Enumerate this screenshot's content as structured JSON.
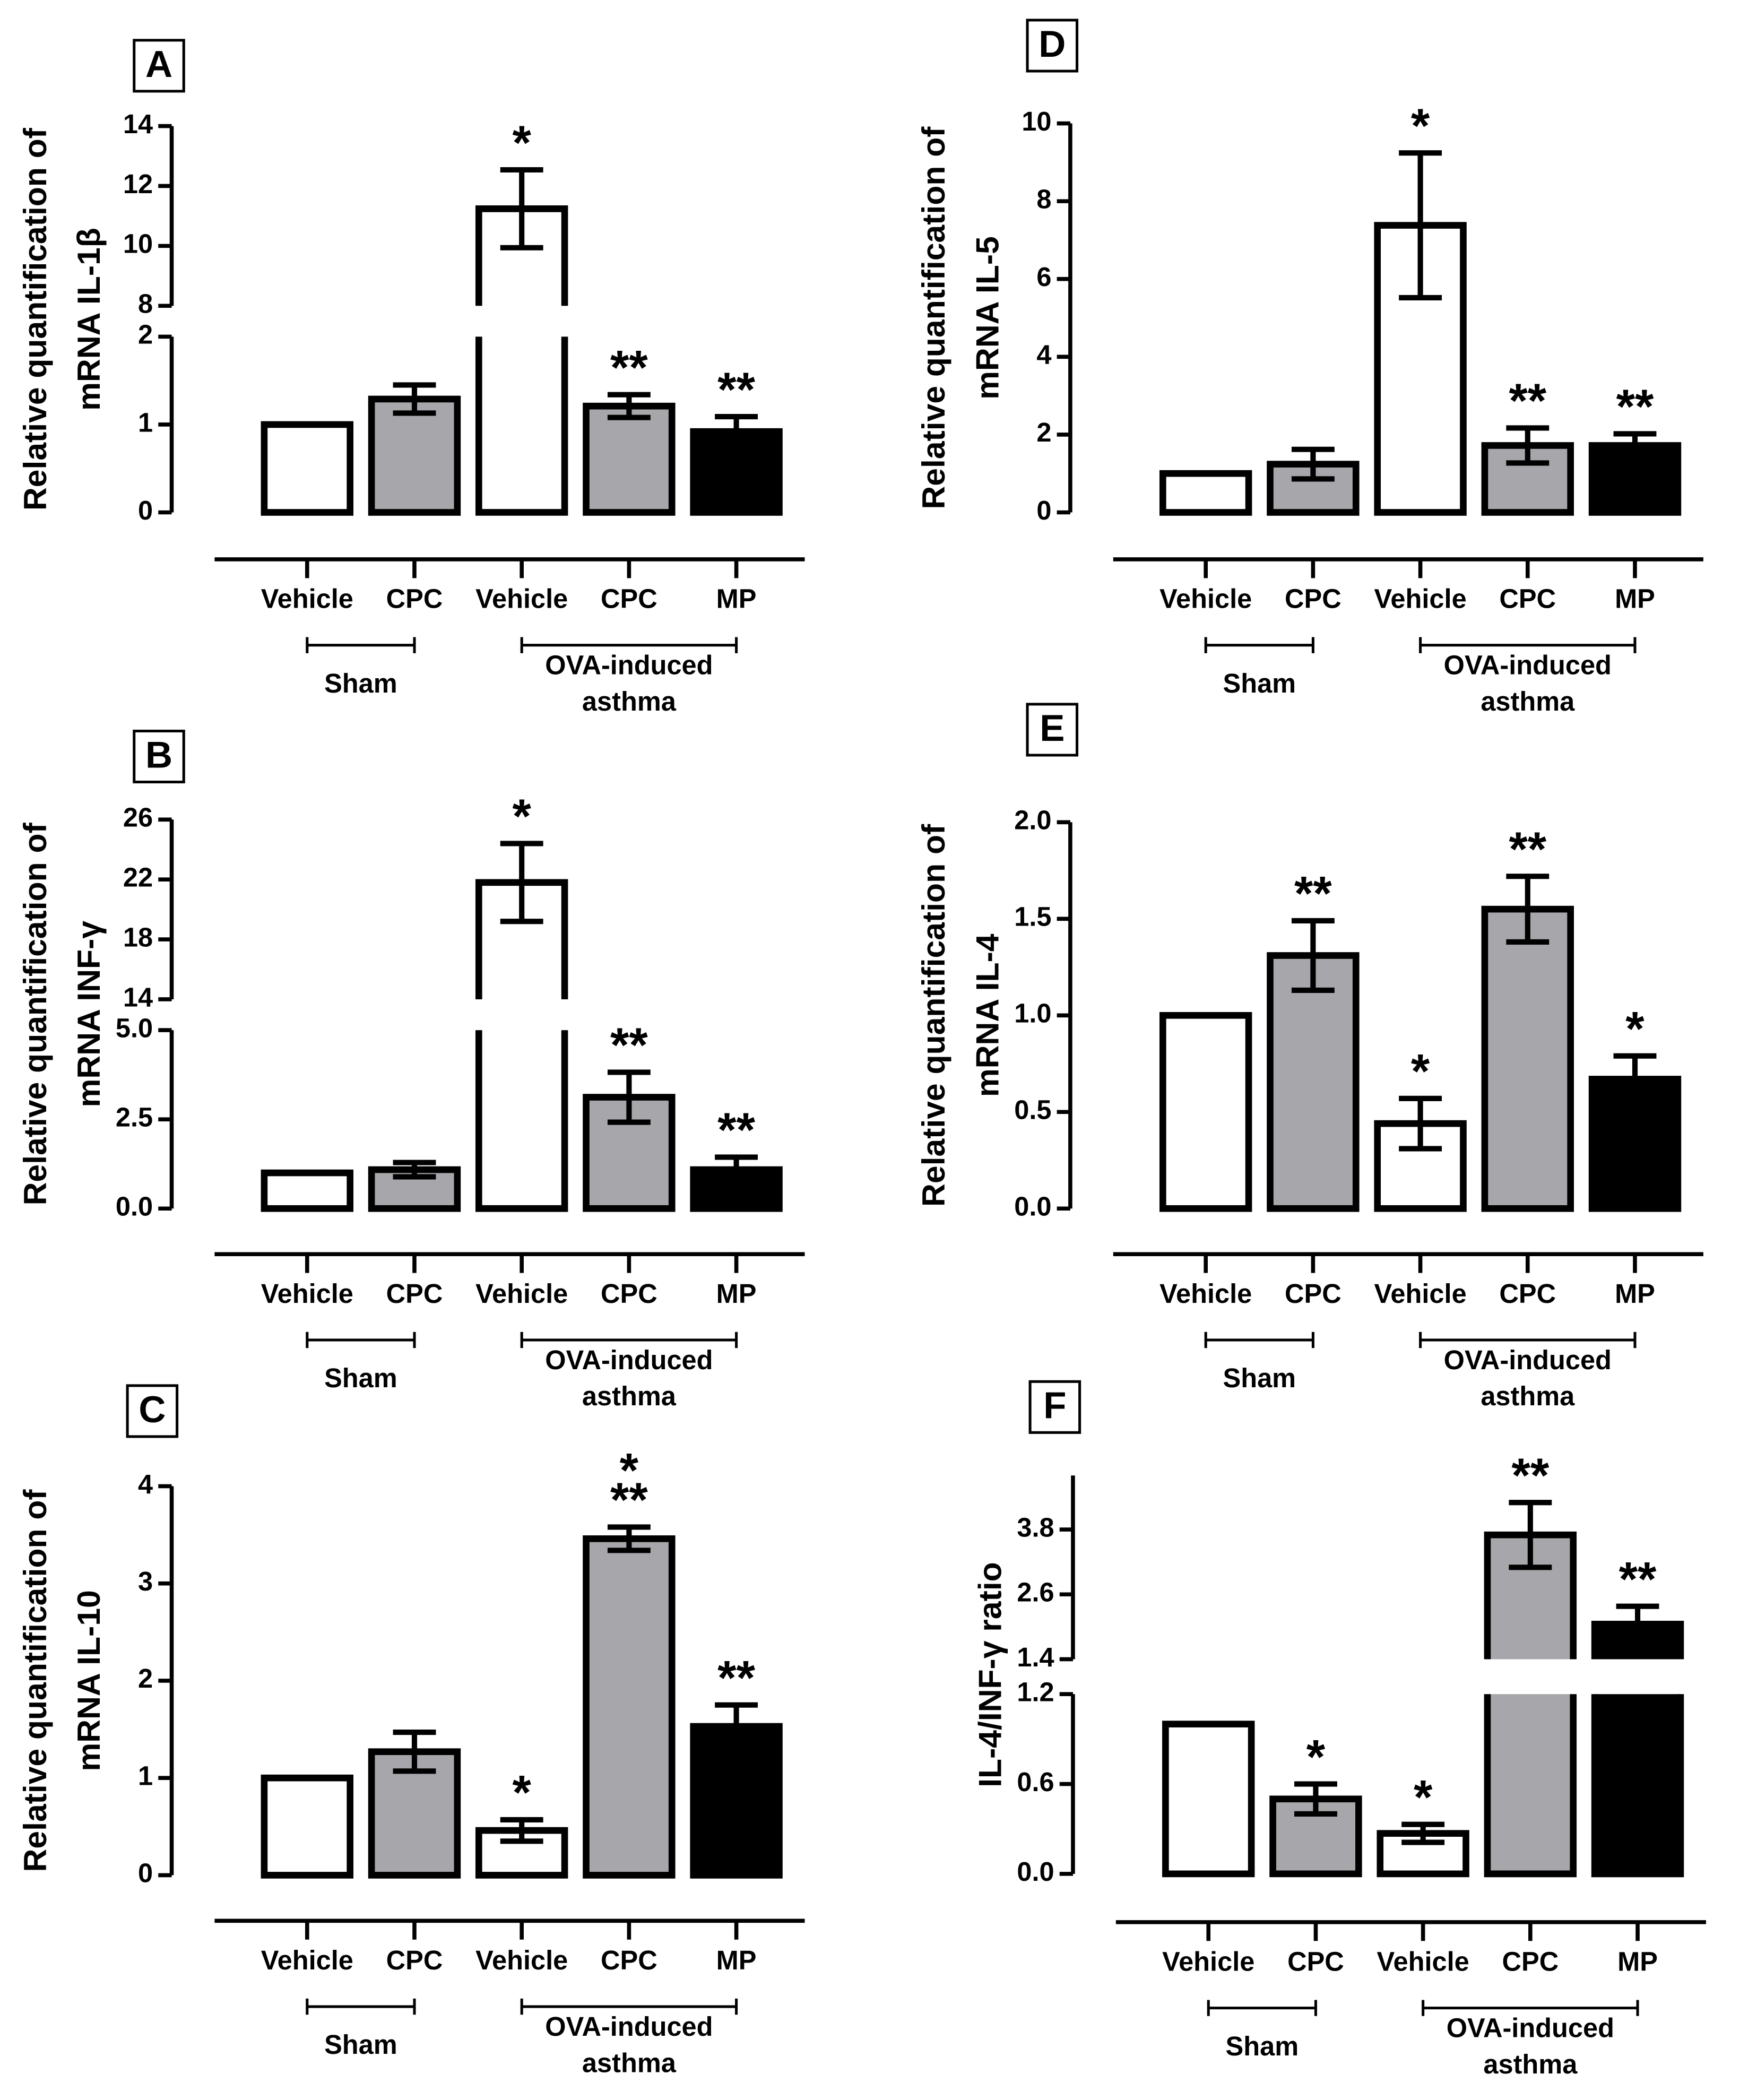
{
  "chart_data": [
    {
      "type": "bar",
      "panel": "A",
      "ylabel": [
        "Relative quantification of",
        "mRNA IL-1β"
      ],
      "categories": [
        "Vehicle",
        "CPC",
        "Vehicle",
        "CPC",
        "MP"
      ],
      "values": [
        1.0,
        1.29,
        11.24,
        1.21,
        0.92
      ],
      "errors": [
        0,
        0.16,
        1.3,
        0.13,
        0.17
      ],
      "colors": [
        "#ffffff",
        "#a7a7ab",
        "#ffffff",
        "#a7a7ab",
        "#000000"
      ],
      "annotations": [
        null,
        null,
        [
          "*"
        ],
        [
          "**"
        ],
        [
          "**"
        ]
      ],
      "groups": [
        {
          "name": [
            "Sham"
          ],
          "size": 2
        },
        {
          "name": [
            "OVA-induced",
            "asthma"
          ],
          "size": 3
        }
      ],
      "ylim": [
        0,
        14
      ],
      "ybreak": [
        2,
        8
      ],
      "yticks": [
        0,
        1,
        2,
        8,
        10,
        12,
        14
      ]
    },
    {
      "type": "bar",
      "panel": "B",
      "ylabel": [
        "Relative quantification of",
        "mRNA INF-γ"
      ],
      "categories": [
        "Vehicle",
        "CPC",
        "Vehicle",
        "CPC",
        "MP"
      ],
      "values": [
        1.0,
        1.09,
        21.8,
        3.12,
        1.09
      ],
      "errors": [
        0,
        0.2,
        2.6,
        0.7,
        0.35
      ],
      "colors": [
        "#ffffff",
        "#a7a7ab",
        "#ffffff",
        "#a7a7ab",
        "#000000"
      ],
      "annotations": [
        null,
        null,
        [
          "*"
        ],
        [
          "**"
        ],
        [
          "**"
        ]
      ],
      "groups": [
        {
          "name": [
            "Sham"
          ],
          "size": 2
        },
        {
          "name": [
            "OVA-induced",
            "asthma"
          ],
          "size": 3
        }
      ],
      "ylim": [
        0,
        26
      ],
      "ybreak": [
        5,
        14
      ],
      "yticks": [
        {
          "value": 0,
          "label": "0.0"
        },
        2.5,
        {
          "value": 5,
          "label": "5.0"
        },
        14,
        18,
        22,
        26
      ]
    },
    {
      "type": "bar",
      "panel": "C",
      "ylabel": [
        "Relative quantification of",
        "mRNA IL-10"
      ],
      "categories": [
        "Vehicle",
        "CPC",
        "Vehicle",
        "CPC",
        "MP"
      ],
      "values": [
        1.0,
        1.27,
        0.46,
        3.46,
        1.53
      ],
      "errors": [
        0,
        0.2,
        0.11,
        0.12,
        0.22
      ],
      "colors": [
        "#ffffff",
        "#a7a7ab",
        "#ffffff",
        "#a7a7ab",
        "#000000"
      ],
      "annotations": [
        null,
        null,
        [
          "*"
        ],
        [
          "*",
          "**"
        ],
        [
          "**"
        ]
      ],
      "groups": [
        {
          "name": [
            "Sham"
          ],
          "size": 2
        },
        {
          "name": [
            "OVA-induced",
            "asthma"
          ],
          "size": 3
        }
      ],
      "ylim": [
        0,
        4
      ],
      "yticks": [
        0,
        1,
        2,
        3,
        4
      ]
    },
    {
      "type": "bar",
      "panel": "D",
      "ylabel": [
        "Relative quantification of",
        "mRNA IL-5"
      ],
      "categories": [
        "Vehicle",
        "CPC",
        "Vehicle",
        "CPC",
        "MP"
      ],
      "values": [
        1.0,
        1.24,
        7.38,
        1.72,
        1.72
      ],
      "errors": [
        0,
        0.38,
        1.86,
        0.45,
        0.3
      ],
      "colors": [
        "#ffffff",
        "#a7a7ab",
        "#ffffff",
        "#a7a7ab",
        "#000000"
      ],
      "annotations": [
        null,
        null,
        [
          "*"
        ],
        [
          "**"
        ],
        [
          "**"
        ]
      ],
      "groups": [
        {
          "name": [
            "Sham"
          ],
          "size": 2
        },
        {
          "name": [
            "OVA-induced",
            "asthma"
          ],
          "size": 3
        }
      ],
      "ylim": [
        0,
        10
      ],
      "yticks": [
        0,
        2,
        4,
        6,
        8,
        10
      ]
    },
    {
      "type": "bar",
      "panel": "E",
      "ylabel": [
        "Relative quantification of",
        "mRNA IL-4"
      ],
      "categories": [
        "Vehicle",
        "CPC",
        "Vehicle",
        "CPC",
        "MP"
      ],
      "values": [
        1.0,
        1.31,
        0.44,
        1.55,
        0.67
      ],
      "errors": [
        0,
        0.18,
        0.13,
        0.17,
        0.12
      ],
      "colors": [
        "#ffffff",
        "#a7a7ab",
        "#ffffff",
        "#a7a7ab",
        "#000000"
      ],
      "annotations": [
        null,
        [
          "**"
        ],
        [
          "*"
        ],
        [
          "**"
        ],
        [
          "*"
        ]
      ],
      "groups": [
        {
          "name": [
            "Sham"
          ],
          "size": 2
        },
        {
          "name": [
            "OVA-induced",
            "asthma"
          ],
          "size": 3
        }
      ],
      "ylim": [
        0,
        2
      ],
      "yticks": [
        {
          "value": 0,
          "label": "0.0"
        },
        0.5,
        {
          "value": 1,
          "label": "1.0"
        },
        1.5,
        {
          "value": 2,
          "label": "2.0"
        }
      ]
    },
    {
      "type": "bar",
      "panel": "F",
      "ylabel": [
        "IL-4/INF-γ ratio"
      ],
      "categories": [
        "Vehicle",
        "CPC",
        "Vehicle",
        "CPC",
        "MP"
      ],
      "values": [
        1.0,
        0.5,
        0.27,
        3.7,
        2.05
      ],
      "errors": [
        0,
        0.1,
        0.06,
        0.6,
        0.33
      ],
      "colors": [
        "#ffffff",
        "#a7a7ab",
        "#ffffff",
        "#a7a7ab",
        "#000000"
      ],
      "annotations": [
        null,
        [
          "*"
        ],
        [
          "*"
        ],
        [
          "**"
        ],
        [
          "**"
        ]
      ],
      "groups": [
        {
          "name": [
            "Sham"
          ],
          "size": 2
        },
        {
          "name": [
            "OVA-induced",
            "asthma"
          ],
          "size": 3
        }
      ],
      "ylim": [
        0,
        4.8
      ],
      "ybreak": [
        1.2,
        1.4
      ],
      "yticks": [
        {
          "value": 0,
          "label": "0.0"
        },
        0.6,
        1.2,
        1.4,
        2.6,
        3.8
      ]
    }
  ]
}
